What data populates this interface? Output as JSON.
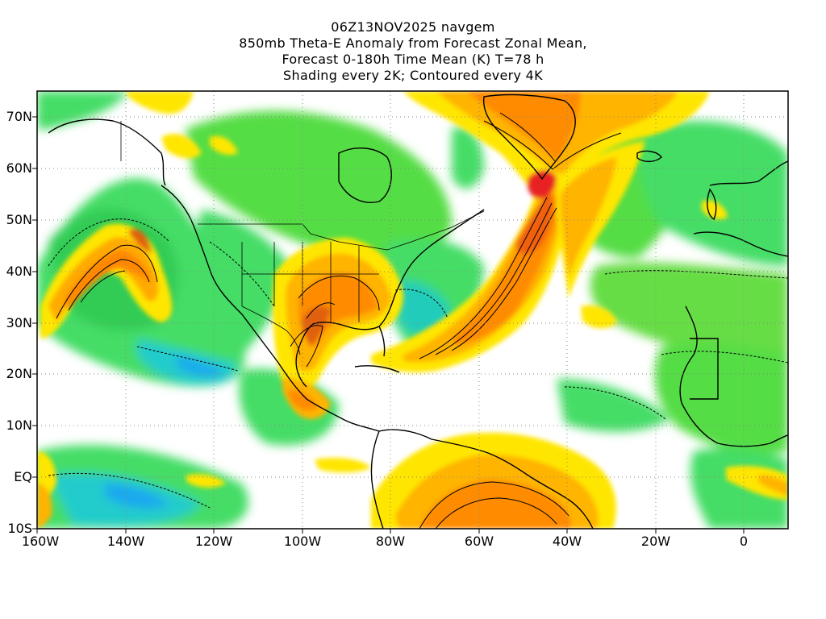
{
  "title": {
    "line1": "06Z13NOV2025 navgem",
    "line2": "850mb Theta-E Anomaly from Forecast Zonal Mean,",
    "line3": "Forecast 0-180h Time Mean (K) T=78 h",
    "line4": "Shading every 2K; Contoured every 4K"
  },
  "map": {
    "projection": "lat-lon",
    "lon_range": [
      -160,
      10
    ],
    "lat_range": [
      -10,
      75
    ],
    "grid": "dotted",
    "colors": {
      "background": "#ffffff",
      "coastline": "#000000",
      "ocean_neutral": "#ffffff"
    },
    "y_labels": [
      "70N",
      "60N",
      "50N",
      "40N",
      "30N",
      "20N",
      "10N",
      "EQ",
      "10S"
    ],
    "x_labels": [
      "160W",
      "140W",
      "120W",
      "100W",
      "80W",
      "60W",
      "40W",
      "20W",
      "0"
    ]
  }
}
